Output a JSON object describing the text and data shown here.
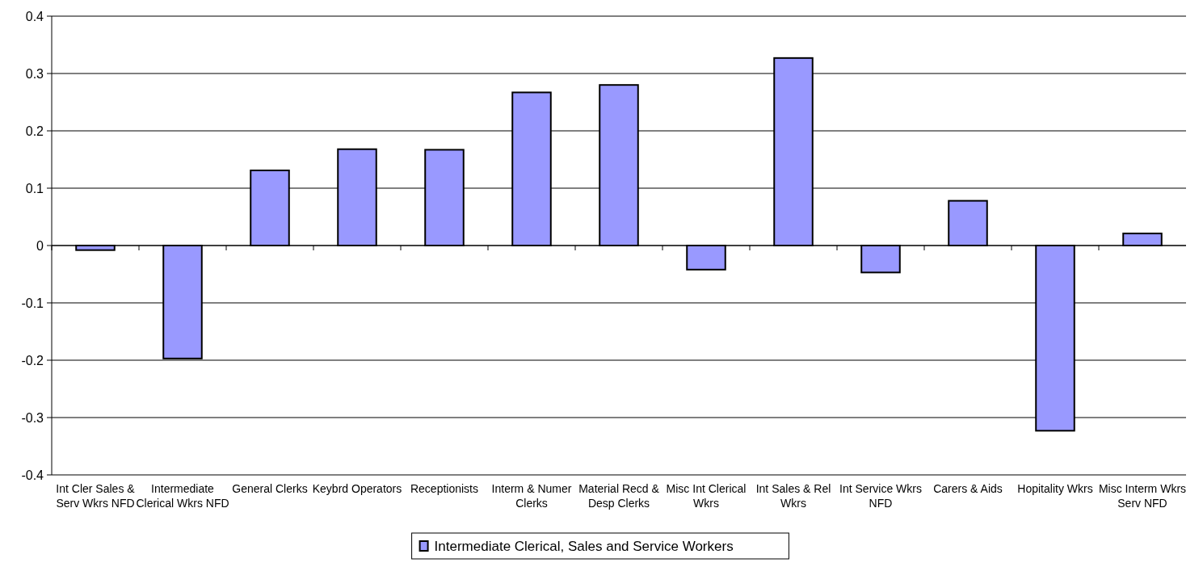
{
  "chart_data": {
    "type": "bar",
    "categories": [
      "Int Cler Sales & Serv Wkrs NFD",
      "Intermediate Clerical Wkrs NFD",
      "General Clerks",
      "Keybrd Operators",
      "Receptionists",
      "Interm & Numer Clerks",
      "Material Recd & Desp Clerks",
      "Misc Int Clerical Wkrs",
      "Int Sales & Rel Wkrs",
      "Int Service Wkrs NFD",
      "Carers & Aids",
      "Hopitality Wkrs",
      "Misc Interm Wkrs Serv NFD"
    ],
    "series": [
      {
        "name": "Intermediate Clerical, Sales and Service Workers",
        "color": "#9999ff",
        "values": [
          -0.008,
          -0.197,
          0.131,
          0.168,
          0.167,
          0.267,
          0.28,
          -0.042,
          0.327,
          -0.047,
          0.078,
          -0.323,
          0.021
        ]
      }
    ],
    "ylim": [
      -0.4,
      0.4
    ],
    "yticks": [
      -0.4,
      -0.3,
      -0.2,
      -0.1,
      0,
      0.1,
      0.2,
      0.3,
      0.4
    ],
    "grid": "y",
    "legend": "bottom"
  }
}
